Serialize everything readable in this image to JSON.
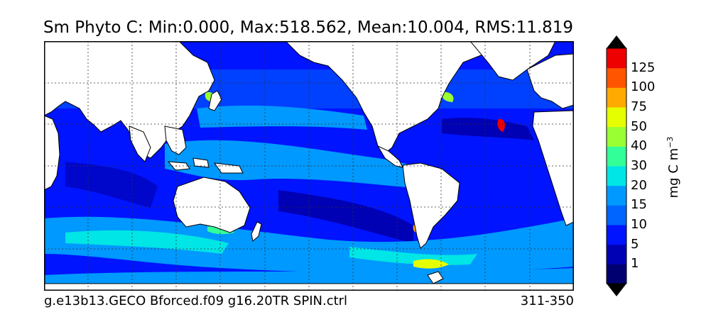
{
  "title": "Sm Phyto C: Min:0.000, Max:518.562, Mean:10.004, RMS:11.819",
  "caption_left": "g.e13b13.GECO Bforced.f09 g16.20TR SPIN.ctrl",
  "caption_right": "311-350",
  "colorbar": {
    "units_base": "mg C m",
    "units_exponent": "−3",
    "levels": [
      {
        "label": "1",
        "color": "#0000b4"
      },
      {
        "label": "5",
        "color": "#0014ff"
      },
      {
        "label": "10",
        "color": "#0064ff"
      },
      {
        "label": "15",
        "color": "#0099ff"
      },
      {
        "label": "20",
        "color": "#00e5e5"
      },
      {
        "label": "30",
        "color": "#33ff99"
      },
      {
        "label": "40",
        "color": "#99ff33"
      },
      {
        "label": "50",
        "color": "#e5ff00"
      },
      {
        "label": "75",
        "color": "#ffaa00"
      },
      {
        "label": "100",
        "color": "#ff5500"
      },
      {
        "label": "125",
        "color": "#ee0000"
      }
    ],
    "under_color": "#000070",
    "over_color": "#780000"
  },
  "map_colors": {
    "land": "#ffffff",
    "gridline": "#333333",
    "coastline": "#000000"
  }
}
